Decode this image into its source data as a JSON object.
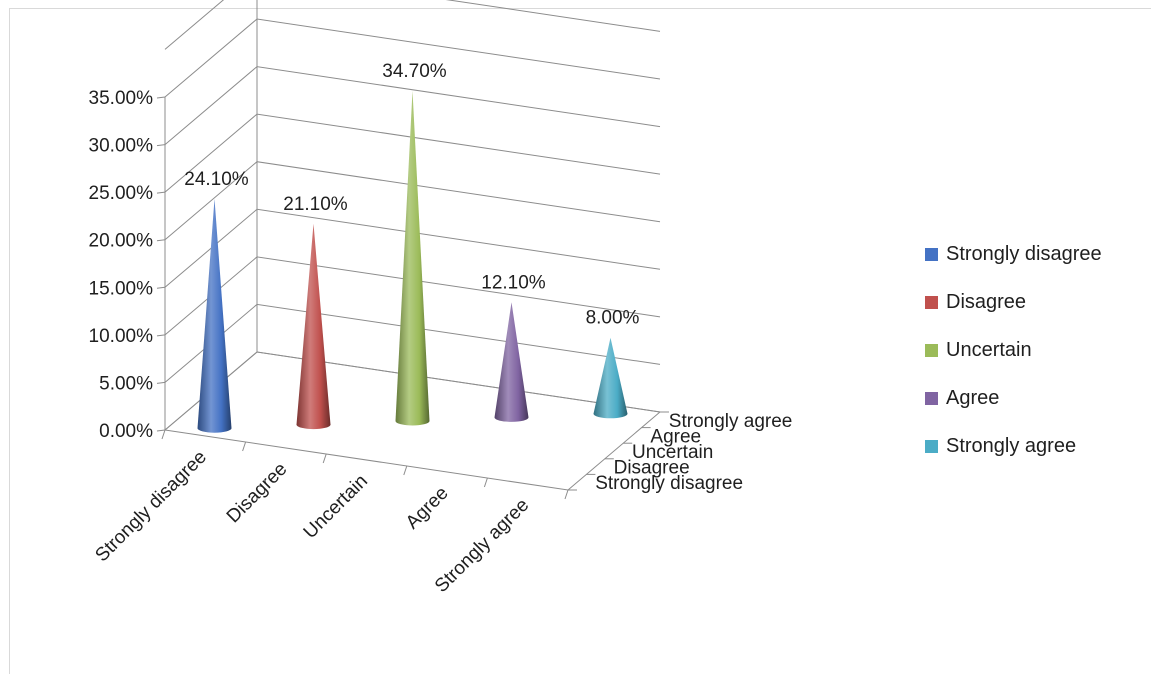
{
  "chart_data": {
    "type": "bar",
    "style": "3d-cone",
    "categories": [
      "Strongly disagree",
      "Disagree",
      "Uncertain",
      "Agree",
      "Strongly agree"
    ],
    "values": [
      0.241,
      0.211,
      0.347,
      0.121,
      0.08
    ],
    "data_labels": [
      "24.10%",
      "21.10%",
      "34.70%",
      "12.10%",
      "8.00%"
    ],
    "yticks": [
      "0.00%",
      "5.00%",
      "10.00%",
      "15.00%",
      "20.00%",
      "25.00%",
      "30.00%",
      "35.00%"
    ],
    "ylim": [
      0,
      0.35
    ],
    "depth_labels": [
      "Strongly disagree",
      "Disagree",
      "Uncertain",
      "Agree",
      "Strongly agree"
    ],
    "legend": {
      "position": "right",
      "items": [
        {
          "label": "Strongly disagree",
          "color": "#4472c4"
        },
        {
          "label": "Disagree",
          "color": "#c0504d"
        },
        {
          "label": "Uncertain",
          "color": "#9bbb59"
        },
        {
          "label": "Agree",
          "color": "#8064a2"
        },
        {
          "label": "Strongly agree",
          "color": "#4bacc6"
        }
      ]
    },
    "grid": true
  }
}
